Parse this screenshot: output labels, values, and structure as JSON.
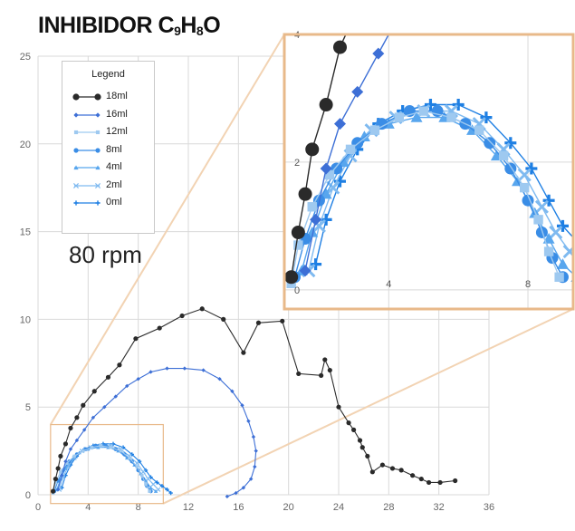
{
  "title": {
    "main": "INHIBIDOR C",
    "sub1": "9",
    "mid": "H",
    "sub2": "8",
    "end": "O"
  },
  "annotation": "80 rpm",
  "legend": {
    "title": "Legend",
    "items": [
      {
        "label": "18ml",
        "color": "#2a2a2a",
        "marker": "circle"
      },
      {
        "label": "16ml",
        "color": "#3d6fd6",
        "marker": "diamond"
      },
      {
        "label": "12ml",
        "color": "#9ec9f0",
        "marker": "square"
      },
      {
        "label": "8ml",
        "color": "#3a8de6",
        "marker": "circle"
      },
      {
        "label": "4ml",
        "color": "#58a6ee",
        "marker": "triangle"
      },
      {
        "label": "2ml",
        "color": "#7fbaf0",
        "marker": "x"
      },
      {
        "label": "0ml",
        "color": "#1e7fe3",
        "marker": "plus"
      }
    ]
  },
  "colors": {
    "grid": "#d9d9d9",
    "inset_border": "#e8b98a",
    "zoom_lines": "#f2d3b3"
  },
  "chart_data": {
    "type": "scatter",
    "title": "INHIBIDOR C9H8O",
    "xlim": [
      0,
      36
    ],
    "ylim": [
      0,
      25
    ],
    "xticks": [
      0,
      4,
      8,
      12,
      16,
      20,
      24,
      28,
      32,
      36
    ],
    "yticks": [
      0,
      5,
      10,
      15,
      20,
      25
    ],
    "grid": true,
    "legend_position": "top-left",
    "series": [
      {
        "name": "18ml",
        "points": [
          [
            1.2,
            0.2
          ],
          [
            1.4,
            0.9
          ],
          [
            1.6,
            1.5
          ],
          [
            1.8,
            2.2
          ],
          [
            2.2,
            2.9
          ],
          [
            2.6,
            3.8
          ],
          [
            3.1,
            4.4
          ],
          [
            3.6,
            5.1
          ],
          [
            4.5,
            5.9
          ],
          [
            5.6,
            6.7
          ],
          [
            6.5,
            7.4
          ],
          [
            7.8,
            8.9
          ],
          [
            9.7,
            9.5
          ],
          [
            11.5,
            10.2
          ],
          [
            13.1,
            10.6
          ],
          [
            14.8,
            10.0
          ],
          [
            16.4,
            8.1
          ],
          [
            17.6,
            9.8
          ],
          [
            19.5,
            9.9
          ],
          [
            20.8,
            6.9
          ],
          [
            22.6,
            6.8
          ],
          [
            22.9,
            7.7
          ],
          [
            23.3,
            7.1
          ],
          [
            24.0,
            5.0
          ],
          [
            24.8,
            4.1
          ],
          [
            25.2,
            3.7
          ],
          [
            25.7,
            3.1
          ],
          [
            25.9,
            2.7
          ],
          [
            26.3,
            2.2
          ],
          [
            26.7,
            1.3
          ],
          [
            27.5,
            1.7
          ],
          [
            28.3,
            1.5
          ],
          [
            29.0,
            1.4
          ],
          [
            29.9,
            1.1
          ],
          [
            30.6,
            0.9
          ],
          [
            31.2,
            0.7
          ],
          [
            32.1,
            0.7
          ],
          [
            33.3,
            0.8
          ]
        ]
      },
      {
        "name": "16ml",
        "points": [
          [
            1.6,
            0.3
          ],
          [
            1.9,
            1.1
          ],
          [
            2.2,
            1.9
          ],
          [
            2.6,
            2.6
          ],
          [
            3.1,
            3.1
          ],
          [
            3.7,
            3.7
          ],
          [
            4.4,
            4.4
          ],
          [
            5.3,
            5.0
          ],
          [
            6.2,
            5.6
          ],
          [
            7.1,
            6.2
          ],
          [
            8.0,
            6.6
          ],
          [
            9.0,
            7.0
          ],
          [
            10.3,
            7.2
          ],
          [
            11.7,
            7.2
          ],
          [
            13.2,
            7.1
          ],
          [
            14.5,
            6.6
          ],
          [
            15.5,
            5.9
          ],
          [
            16.3,
            5.1
          ],
          [
            16.8,
            4.2
          ],
          [
            17.2,
            3.3
          ],
          [
            17.4,
            2.5
          ],
          [
            17.3,
            1.6
          ],
          [
            17.0,
            0.9
          ],
          [
            16.4,
            0.4
          ],
          [
            15.8,
            0.1
          ],
          [
            15.1,
            -0.1
          ]
        ]
      },
      {
        "name": "12ml",
        "points": [
          [
            1.2,
            0.1
          ],
          [
            1.4,
            0.7
          ],
          [
            1.8,
            1.3
          ],
          [
            2.3,
            1.8
          ],
          [
            2.9,
            2.2
          ],
          [
            3.6,
            2.5
          ],
          [
            4.3,
            2.7
          ],
          [
            5.0,
            2.8
          ],
          [
            5.8,
            2.7
          ],
          [
            6.6,
            2.5
          ],
          [
            7.3,
            2.1
          ],
          [
            7.9,
            1.6
          ],
          [
            8.3,
            1.1
          ],
          [
            8.6,
            0.6
          ],
          [
            8.9,
            0.2
          ]
        ]
      },
      {
        "name": "8ml",
        "points": [
          [
            1.3,
            0.2
          ],
          [
            1.6,
            0.8
          ],
          [
            2.0,
            1.4
          ],
          [
            2.5,
            1.9
          ],
          [
            3.1,
            2.3
          ],
          [
            3.8,
            2.6
          ],
          [
            4.6,
            2.8
          ],
          [
            5.4,
            2.8
          ],
          [
            6.2,
            2.6
          ],
          [
            6.9,
            2.3
          ],
          [
            7.5,
            1.9
          ],
          [
            8.0,
            1.4
          ],
          [
            8.4,
            0.9
          ],
          [
            8.7,
            0.5
          ],
          [
            9.0,
            0.2
          ]
        ]
      },
      {
        "name": "4ml",
        "points": [
          [
            1.5,
            0.3
          ],
          [
            1.8,
            0.9
          ],
          [
            2.2,
            1.5
          ],
          [
            2.7,
            2.0
          ],
          [
            3.3,
            2.4
          ],
          [
            4.0,
            2.6
          ],
          [
            4.8,
            2.7
          ],
          [
            5.6,
            2.7
          ],
          [
            6.4,
            2.5
          ],
          [
            7.1,
            2.1
          ],
          [
            7.7,
            1.7
          ],
          [
            8.2,
            1.2
          ],
          [
            8.6,
            0.8
          ],
          [
            9.0,
            0.4
          ],
          [
            9.4,
            0.2
          ]
        ]
      },
      {
        "name": "2ml",
        "points": [
          [
            1.7,
            0.3
          ],
          [
            2.0,
            1.0
          ],
          [
            2.4,
            1.6
          ],
          [
            2.9,
            2.1
          ],
          [
            3.5,
            2.5
          ],
          [
            4.2,
            2.7
          ],
          [
            5.0,
            2.8
          ],
          [
            5.8,
            2.8
          ],
          [
            6.6,
            2.6
          ],
          [
            7.3,
            2.2
          ],
          [
            7.9,
            1.8
          ],
          [
            8.4,
            1.3
          ],
          [
            8.8,
            0.9
          ],
          [
            9.2,
            0.6
          ],
          [
            9.6,
            0.3
          ]
        ]
      },
      {
        "name": "0ml",
        "points": [
          [
            1.9,
            0.4
          ],
          [
            2.2,
            1.1
          ],
          [
            2.6,
            1.7
          ],
          [
            3.1,
            2.2
          ],
          [
            3.7,
            2.6
          ],
          [
            4.4,
            2.8
          ],
          [
            5.2,
            2.9
          ],
          [
            6.0,
            2.9
          ],
          [
            6.8,
            2.7
          ],
          [
            7.5,
            2.3
          ],
          [
            8.1,
            1.9
          ],
          [
            8.6,
            1.4
          ],
          [
            9.0,
            1.0
          ],
          [
            9.5,
            0.7
          ],
          [
            9.9,
            0.5
          ],
          [
            10.3,
            0.3
          ],
          [
            10.6,
            0.1
          ]
        ]
      }
    ],
    "inset": {
      "xlim": [
        1,
        9.3
      ],
      "ylim": [
        -0.3,
        4
      ],
      "xticks": [
        4,
        8
      ],
      "yticks": [
        0,
        2,
        4
      ],
      "source_region": {
        "x": [
          1,
          10
        ],
        "y": [
          -0.5,
          4
        ]
      }
    }
  }
}
